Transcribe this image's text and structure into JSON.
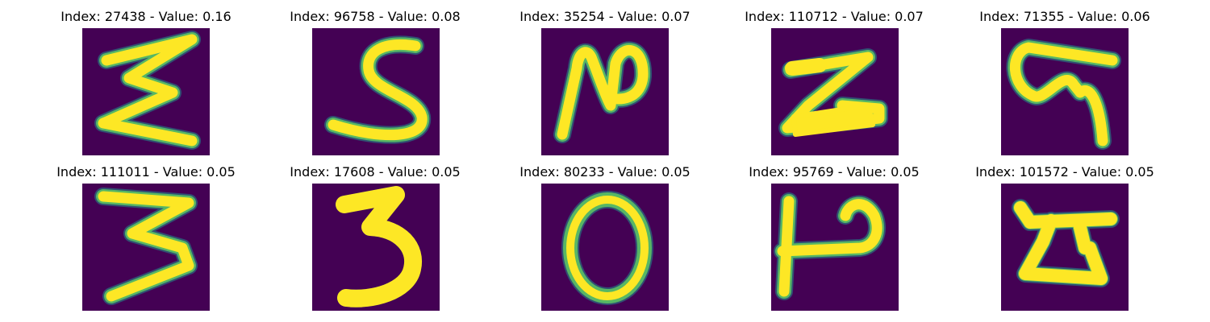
{
  "panels": [
    {
      "title": "Index: 27438 - Value: 0.16"
    },
    {
      "title": "Index: 96758 - Value: 0.08"
    },
    {
      "title": "Index: 35254 - Value: 0.07"
    },
    {
      "title": "Index: 110712 - Value: 0.07"
    },
    {
      "title": "Index: 71355 - Value: 0.06"
    },
    {
      "title": "Index: 111011 - Value: 0.05"
    },
    {
      "title": "Index: 17608 - Value: 0.05"
    },
    {
      "title": "Index: 80233 - Value: 0.05"
    },
    {
      "title": "Index: 95769 - Value: 0.05"
    },
    {
      "title": "Index: 101572 - Value: 0.05"
    }
  ],
  "colors": {
    "background": "#440154",
    "stroke_core": "#fde725",
    "stroke_mid": "#5ec962",
    "stroke_edge": "#21918c"
  },
  "colormap": "viridis"
}
